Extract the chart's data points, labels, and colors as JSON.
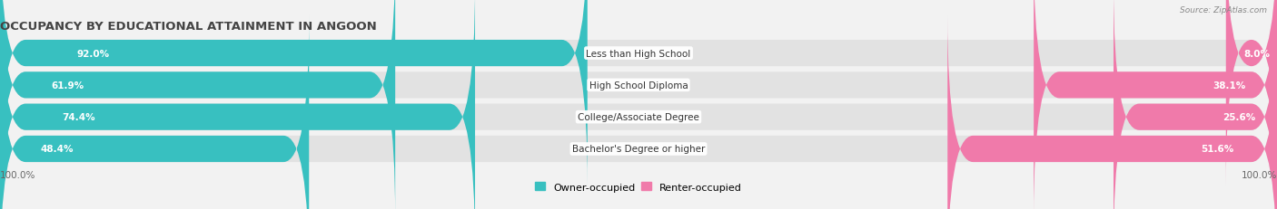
{
  "title": "OCCUPANCY BY EDUCATIONAL ATTAINMENT IN ANGOON",
  "source": "Source: ZipAtlas.com",
  "categories": [
    "Less than High School",
    "High School Diploma",
    "College/Associate Degree",
    "Bachelor's Degree or higher"
  ],
  "owner_values": [
    92.0,
    61.9,
    74.4,
    48.4
  ],
  "renter_values": [
    8.0,
    38.1,
    25.6,
    51.6
  ],
  "owner_color": "#38c0c0",
  "renter_color": "#f07aaa",
  "bg_color": "#f2f2f2",
  "bar_bg_color": "#e2e2e2",
  "title_fontsize": 9.5,
  "value_fontsize": 7.5,
  "cat_fontsize": 7.5,
  "tick_fontsize": 7.5,
  "legend_fontsize": 8,
  "axis_label_left": "100.0%",
  "axis_label_right": "100.0%",
  "bar_height": 0.72,
  "bar_gap": 0.15,
  "xlim_left": -100,
  "xlim_right": 100
}
